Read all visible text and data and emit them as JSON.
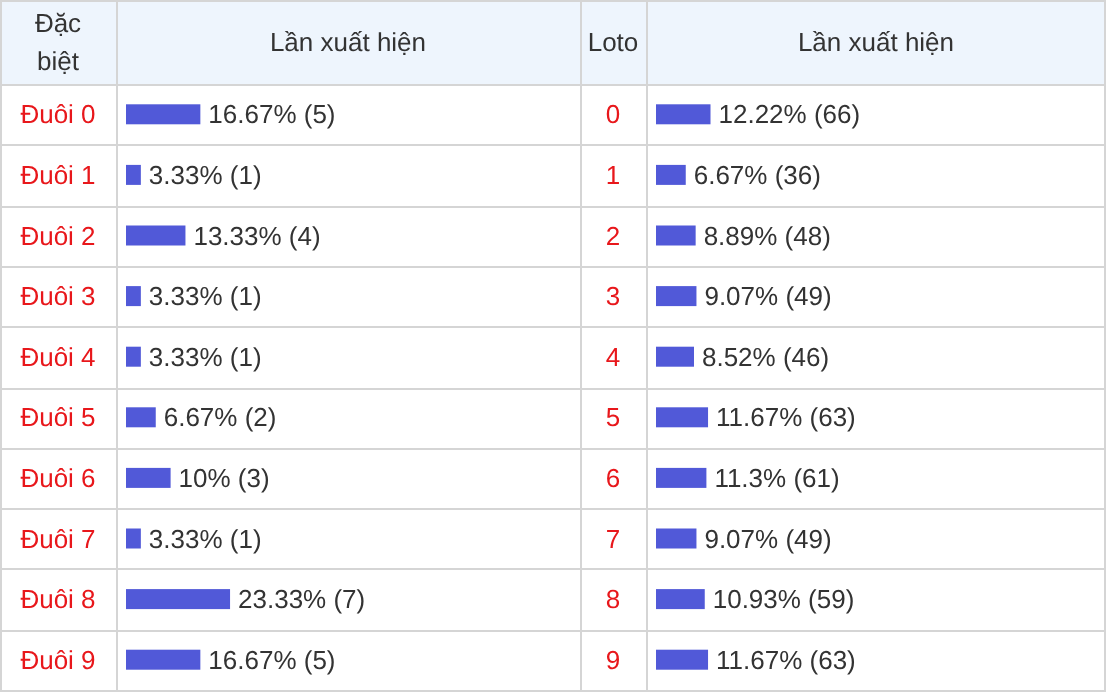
{
  "chart_data": [
    {
      "type": "bar",
      "orientation": "horizontal",
      "ylabel": "Đặc biệt",
      "xlabel": "Lần xuất hiện",
      "color": "#5159d8",
      "categories": [
        "Đuôi 0",
        "Đuôi 1",
        "Đuôi 2",
        "Đuôi 3",
        "Đuôi 4",
        "Đuôi 5",
        "Đuôi 6",
        "Đuôi 7",
        "Đuôi 8",
        "Đuôi 9"
      ],
      "values": [
        16.67,
        3.33,
        13.33,
        3.33,
        3.33,
        6.67,
        10,
        3.33,
        23.33,
        16.67
      ],
      "value_labels": [
        "16.67% (5)",
        "3.33% (1)",
        "13.33% (4)",
        "3.33% (1)",
        "3.33% (1)",
        "6.67% (2)",
        "10% (3)",
        "3.33% (1)",
        "23.33% (7)",
        "16.67% (5)"
      ]
    },
    {
      "type": "bar",
      "orientation": "horizontal",
      "ylabel": "Loto",
      "xlabel": "Lần xuất hiện",
      "color": "#5159d8",
      "categories": [
        "0",
        "1",
        "2",
        "3",
        "4",
        "5",
        "6",
        "7",
        "8",
        "9"
      ],
      "values": [
        12.22,
        6.67,
        8.89,
        9.07,
        8.52,
        11.67,
        11.3,
        9.07,
        10.93,
        11.67
      ],
      "value_labels": [
        "12.22% (66)",
        "6.67% (36)",
        "8.89% (48)",
        "9.07% (49)",
        "8.52% (46)",
        "11.67% (63)",
        "11.3% (61)",
        "9.07% (49)",
        "10.93% (59)",
        "11.67% (63)"
      ]
    }
  ]
}
